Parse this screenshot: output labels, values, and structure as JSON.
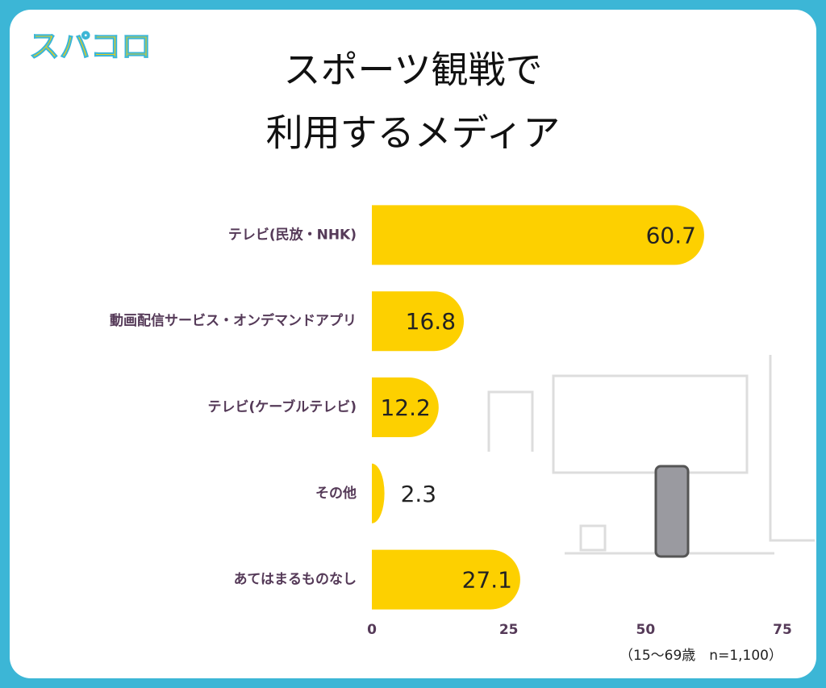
{
  "logo": "スパコロ",
  "chart_data": {
    "type": "bar",
    "orientation": "horizontal",
    "title": [
      "スポーツ観戦で",
      "利用するメディア"
    ],
    "categories": [
      "テレビ(民放・NHK)",
      "動画配信サービス・オンデマンドアプリ",
      "テレビ(ケーブルテレビ)",
      "その他",
      "あてはまるものなし"
    ],
    "values": [
      60.7,
      16.8,
      12.2,
      2.3,
      27.1
    ],
    "color": "#fdd000",
    "xlim": [
      0,
      75
    ],
    "xticks": [
      0,
      25,
      50,
      75
    ],
    "grid": false,
    "annotation": "（15〜69歳　n=1,100）"
  }
}
